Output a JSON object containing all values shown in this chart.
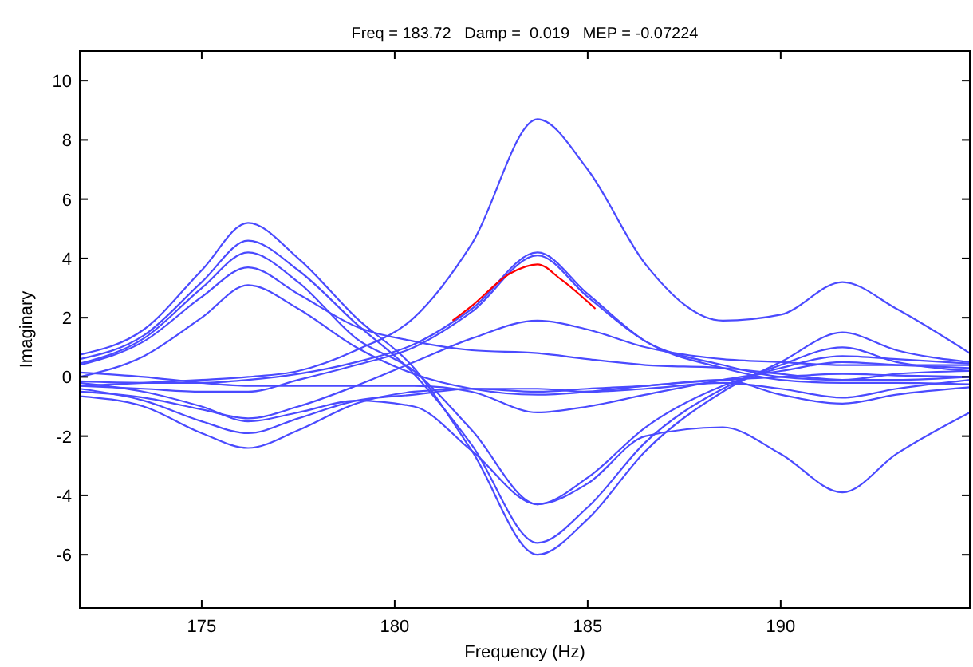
{
  "chart_data": {
    "type": "line",
    "title": "Freq = 183.72   Damp =  0.019   MEP = -0.07224",
    "xlabel": "Frequency (Hz)",
    "ylabel": "Imaginary",
    "x": [
      171.84,
      173.5,
      175,
      176.2,
      177.5,
      179,
      180.5,
      182,
      183.7,
      185,
      186.5,
      188.5,
      190,
      191.6,
      193,
      194.9
    ],
    "xlim": [
      171.84,
      194.9
    ],
    "xticks": [
      175,
      180,
      185,
      190
    ],
    "ylim": [
      -7.8,
      11
    ],
    "yticks": [
      -6,
      -4,
      -2,
      0,
      2,
      4,
      6,
      8,
      10
    ],
    "grid": false,
    "marker": "none",
    "line_style": "solid",
    "series": [
      {
        "color": "#4a4aff",
        "values": [
          -0.3,
          -0.2,
          -0.1,
          0.0,
          0.2,
          0.9,
          2.0,
          4.5,
          8.7,
          7.0,
          3.8,
          1.9,
          2.1,
          3.2,
          2.3,
          0.8
        ]
      },
      {
        "color": "#4a4aff",
        "values": [
          0.75,
          1.6,
          3.6,
          5.2,
          4.0,
          2.0,
          0.3,
          -2.5,
          -6.0,
          -4.8,
          -2.5,
          -0.5,
          0.5,
          1.5,
          0.9,
          0.5
        ]
      },
      {
        "color": "#4a4aff",
        "values": [
          0.6,
          1.4,
          3.2,
          4.6,
          3.6,
          1.8,
          0.1,
          -2.3,
          -5.6,
          -4.4,
          -2.2,
          -0.4,
          0.4,
          1.0,
          0.5,
          0.2
        ]
      },
      {
        "color": "#4a4aff",
        "values": [
          0.45,
          1.3,
          3.0,
          4.2,
          3.2,
          1.3,
          0.2,
          -1.8,
          -4.3,
          -3.4,
          -1.7,
          -0.3,
          0.3,
          0.7,
          0.6,
          0.45
        ]
      },
      {
        "color": "#4a4aff",
        "values": [
          0.4,
          1.2,
          2.7,
          3.7,
          2.8,
          1.7,
          1.2,
          0.9,
          0.8,
          0.6,
          0.4,
          0.3,
          0.1,
          -0.1,
          -0.1,
          0.0
        ]
      },
      {
        "color": "#4a4aff",
        "values": [
          0.0,
          0.7,
          2.0,
          3.1,
          2.3,
          1.0,
          0.1,
          -0.4,
          -0.6,
          -0.5,
          -0.3,
          -0.1,
          0.0,
          0.1,
          0.05,
          0.0
        ]
      },
      {
        "color": "#4a4aff",
        "values": [
          -0.15,
          -0.2,
          -0.2,
          -0.1,
          0.1,
          0.5,
          1.1,
          2.3,
          4.2,
          2.8,
          1.2,
          0.3,
          -0.1,
          -0.2,
          -0.2,
          -0.25
        ]
      },
      {
        "color": "#4a4aff",
        "values": [
          -0.3,
          -0.4,
          -0.5,
          -0.5,
          -0.1,
          0.4,
          1.0,
          2.2,
          4.1,
          2.7,
          1.2,
          0.4,
          0.0,
          -0.1,
          0.1,
          0.2
        ]
      },
      {
        "color": "#4a4aff",
        "values": [
          -0.5,
          -0.7,
          -1.1,
          -1.4,
          -1.0,
          -0.3,
          0.5,
          1.3,
          1.9,
          1.6,
          1.0,
          0.6,
          0.5,
          0.4,
          0.4,
          0.4
        ]
      },
      {
        "color": "#4a4aff",
        "values": [
          -0.4,
          -0.8,
          -1.5,
          -1.9,
          -1.4,
          -0.8,
          -0.6,
          -0.4,
          -0.4,
          -0.5,
          -0.4,
          -0.2,
          -0.4,
          -0.7,
          -0.4,
          -0.1
        ]
      },
      {
        "color": "#4a4aff",
        "values": [
          -0.65,
          -1.0,
          -1.9,
          -2.4,
          -1.8,
          -0.9,
          -0.5,
          -0.4,
          -0.5,
          -0.4,
          -0.3,
          -0.1,
          -0.6,
          -0.9,
          -0.6,
          -0.35
        ]
      },
      {
        "color": "#4a4aff",
        "values": [
          0.15,
          0.0,
          -0.2,
          -0.3,
          -0.3,
          -0.3,
          -0.3,
          -0.5,
          -1.2,
          -1.0,
          -0.6,
          -0.1,
          0.2,
          0.5,
          0.4,
          0.3
        ]
      },
      {
        "color": "#4a4aff",
        "values": [
          -0.2,
          -0.5,
          -1.0,
          -1.5,
          -1.2,
          -0.8,
          -1.0,
          -2.5,
          -4.3,
          -3.6,
          -2.0,
          -1.7,
          -2.6,
          -3.9,
          -2.6,
          -1.2
        ]
      },
      {
        "color": "#ff0000",
        "x": [
          181.5,
          182,
          183,
          183.7,
          184.3,
          185.2
        ],
        "values": [
          1.9,
          2.4,
          3.5,
          3.8,
          3.3,
          2.3
        ]
      }
    ]
  }
}
